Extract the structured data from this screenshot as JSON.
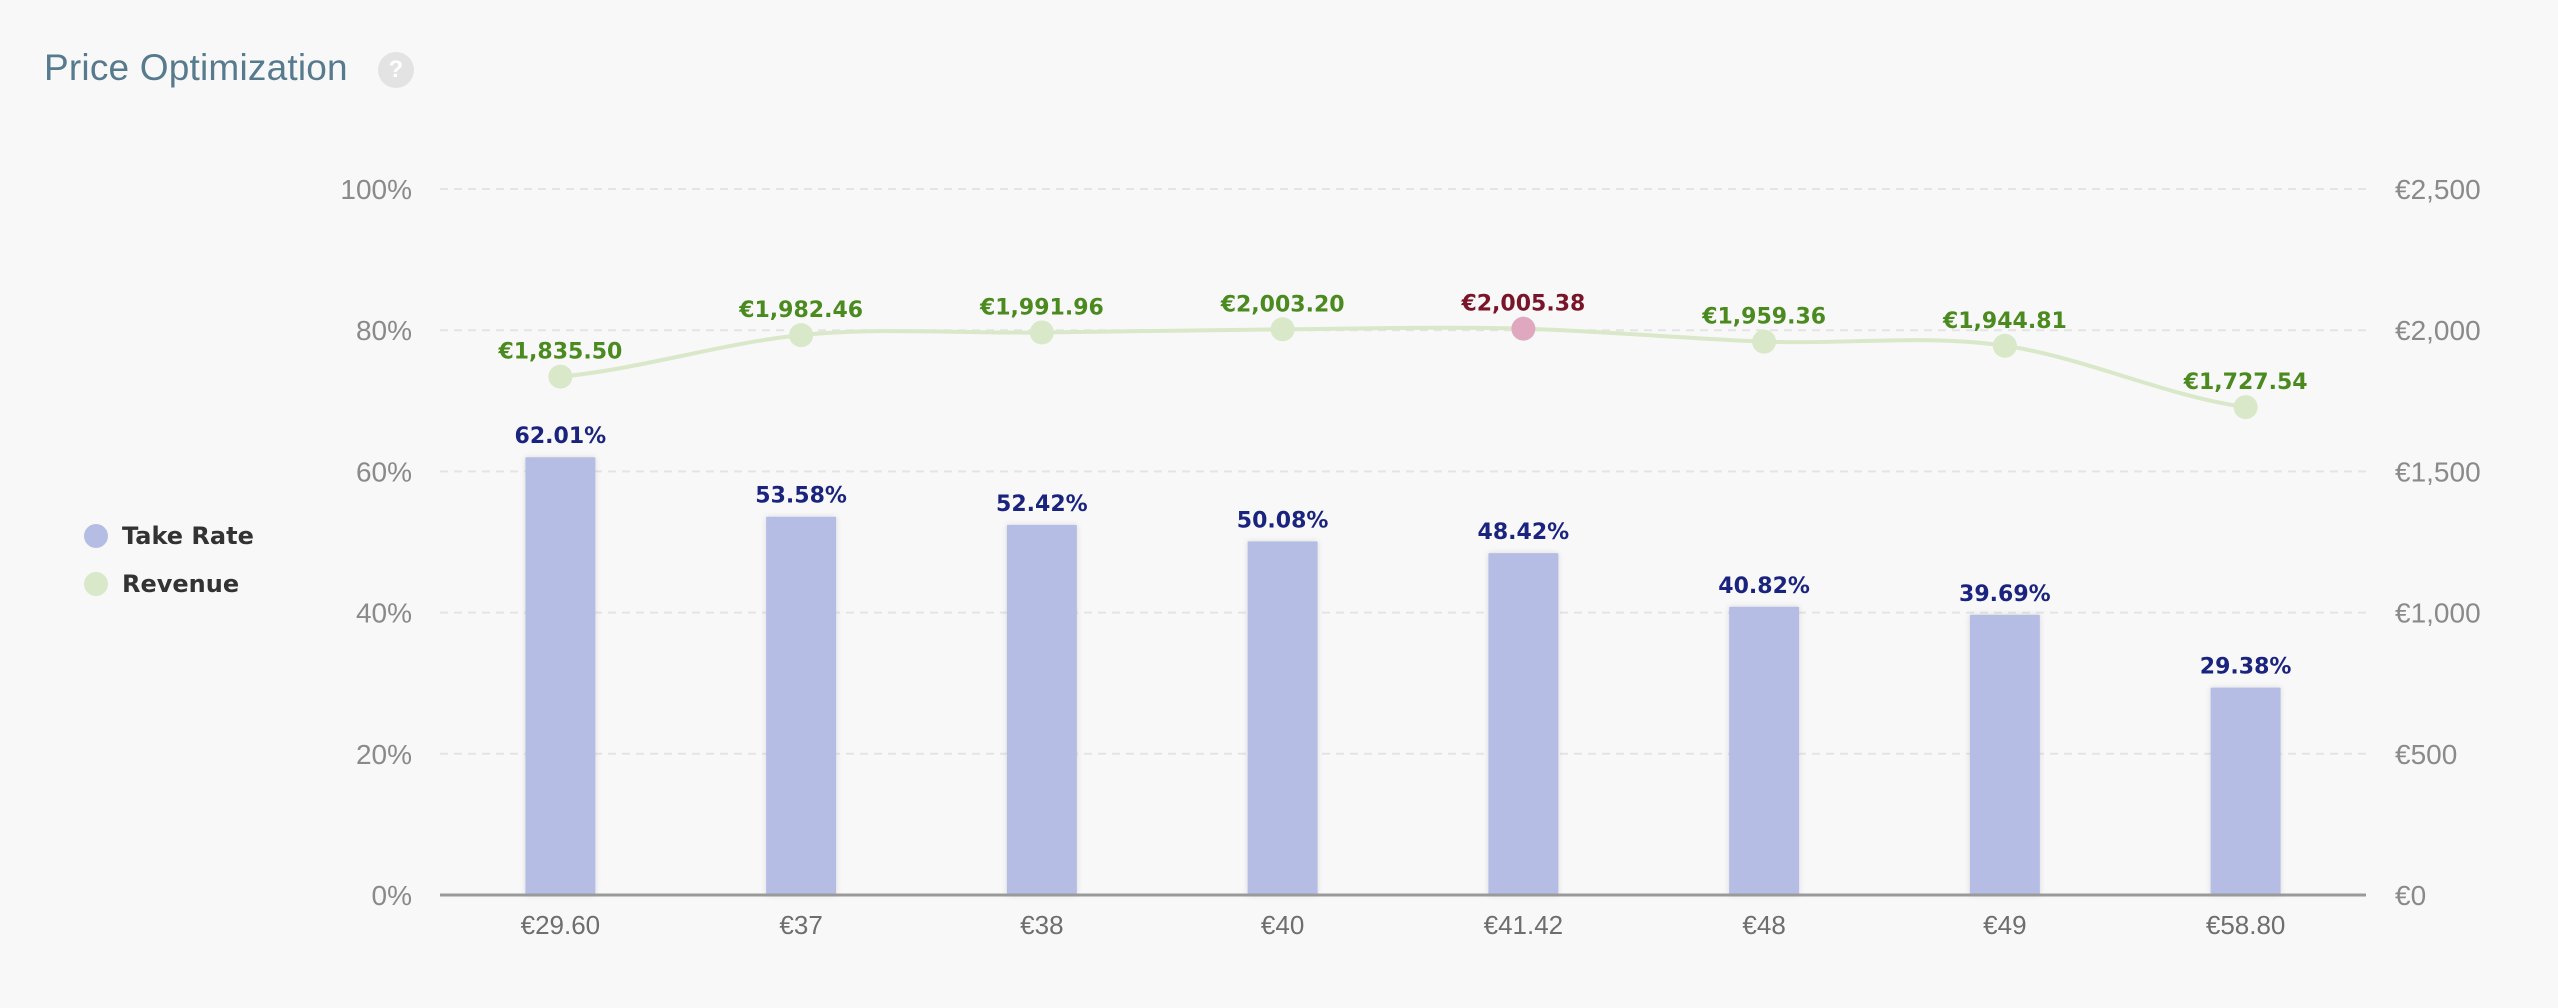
{
  "header": {
    "title": "Price Optimization",
    "help_icon": "question-mark-icon",
    "help_glyph": "?"
  },
  "legend": {
    "items": [
      {
        "label": "Take Rate",
        "color": "#b5bde4"
      },
      {
        "label": "Revenue",
        "color": "#d8e8c8"
      }
    ]
  },
  "chart_data": {
    "type": "bar",
    "categories": [
      "€29.60",
      "€37",
      "€38",
      "€40",
      "€41.42",
      "€48",
      "€49",
      "€58.80"
    ],
    "series": [
      {
        "name": "Take Rate",
        "kind": "bar",
        "axis": "left",
        "values": [
          62.01,
          53.58,
          52.42,
          50.08,
          48.42,
          40.82,
          39.69,
          29.38
        ],
        "labels": [
          "62.01%",
          "53.58%",
          "52.42%",
          "50.08%",
          "48.42%",
          "40.82%",
          "39.69%",
          "29.38%"
        ],
        "color": "#b5bde4",
        "label_color": "#1a237e"
      },
      {
        "name": "Revenue",
        "kind": "line",
        "axis": "right",
        "values": [
          1835.5,
          1982.46,
          1991.96,
          2003.2,
          2005.38,
          1959.36,
          1944.81,
          1727.54
        ],
        "labels": [
          "€1,835.50",
          "€1,982.46",
          "€1,991.96",
          "€2,003.20",
          "€2,005.38",
          "€1,959.36",
          "€1,944.81",
          "€1,727.54"
        ],
        "color": "#d8e8c8",
        "label_color": "#4a8a1f",
        "highlight_index": 4,
        "highlight_color": "#e0a8bf",
        "highlight_label_color": "#7a1428"
      }
    ],
    "left_axis": {
      "ylim": [
        0,
        100
      ],
      "ticks": [
        0,
        20,
        40,
        60,
        80,
        100
      ],
      "tick_labels": [
        "0%",
        "20%",
        "40%",
        "60%",
        "80%",
        "100%"
      ]
    },
    "right_axis": {
      "ylim": [
        0,
        2500
      ],
      "ticks": [
        0,
        500,
        1000,
        1500,
        2000,
        2500
      ],
      "tick_labels": [
        "€0",
        "€500",
        "€1,000",
        "€1,500",
        "€2,000",
        "€2,500"
      ]
    },
    "grid": true,
    "legend_position": "left",
    "title": "",
    "xlabel": "",
    "ylabel": ""
  }
}
